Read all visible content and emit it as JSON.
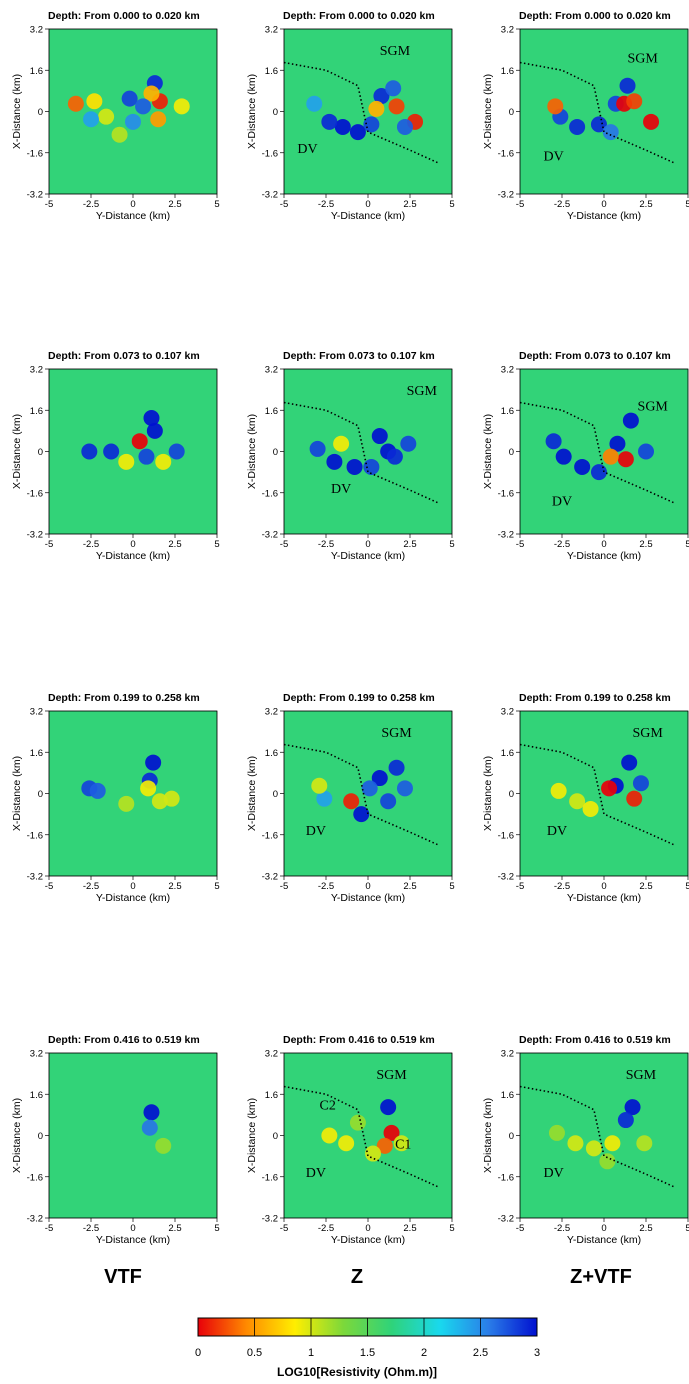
{
  "chart_data": {
    "type": "heatmap",
    "depth_titles": [
      "Depth: From 0.000 to 0.020 km",
      "Depth: From 0.073 to 0.107 km",
      "Depth: From 0.199 to 0.258 km",
      "Depth: From 0.416 to 0.519 km"
    ],
    "columns": [
      "VTF",
      "Z",
      "Z+VTF"
    ],
    "xlabel": "Y-Distance (km)",
    "ylabel": "X-Distance (km)",
    "x_ticks": [
      "-5",
      "-2.5",
      "0",
      "2.5",
      "5"
    ],
    "y_ticks": [
      "3.2",
      "1.6",
      "0",
      "-1.6",
      "-3.2"
    ],
    "xlim": [
      -5,
      5
    ],
    "ylim": [
      -3.2,
      3.2
    ],
    "region_labels": {
      "sgm": "SGM",
      "dv": "DV",
      "c1": "C1",
      "c2": "C2"
    },
    "colorbar": {
      "label": "LOG10[Resistivity (Ohm.m)]",
      "ticks": [
        "0",
        "0.5",
        "1",
        "1.5",
        "2",
        "2.5",
        "3"
      ],
      "range": [
        0,
        3
      ],
      "colors": [
        "#e8000a",
        "#ff8a00",
        "#ffee00",
        "#7cd83a",
        "#2fd37a",
        "#19d8ee",
        "#2a7de8",
        "#0010d0"
      ]
    },
    "background_value": 1.7,
    "panels": [
      {
        "row": 0,
        "col": 0,
        "blobs": [
          [
            1.3,
            1.1,
            2.9
          ],
          [
            1.6,
            0.4,
            0.1
          ],
          [
            1.1,
            0.7,
            0.6
          ],
          [
            -0.2,
            0.5,
            2.8
          ],
          [
            -1.6,
            -0.2,
            1.0
          ],
          [
            -3.4,
            0.3,
            0.3
          ],
          [
            -2.3,
            0.4,
            0.8
          ],
          [
            0.6,
            0.2,
            2.7
          ],
          [
            1.5,
            -0.3,
            0.5
          ],
          [
            2.9,
            0.2,
            0.9
          ],
          [
            -0.8,
            -0.9,
            1.1
          ],
          [
            -2.5,
            -0.3,
            2.4
          ],
          [
            0.0,
            -0.4,
            2.5
          ]
        ]
      },
      {
        "row": 0,
        "col": 1,
        "blobs": [
          [
            -1.5,
            -0.6,
            3.0
          ],
          [
            -0.6,
            -0.8,
            3.0
          ],
          [
            -2.3,
            -0.4,
            2.9
          ],
          [
            0.2,
            -0.5,
            2.8
          ],
          [
            0.8,
            0.6,
            2.9
          ],
          [
            1.5,
            0.9,
            2.7
          ],
          [
            2.8,
            -0.4,
            0.1
          ],
          [
            1.7,
            0.2,
            0.2
          ],
          [
            0.5,
            0.1,
            0.6
          ],
          [
            -3.2,
            0.3,
            2.4
          ],
          [
            2.2,
            -0.6,
            2.7
          ]
        ]
      },
      {
        "row": 0,
        "col": 2,
        "blobs": [
          [
            -1.6,
            -0.6,
            2.9
          ],
          [
            -2.6,
            -0.2,
            2.8
          ],
          [
            1.4,
            1.0,
            2.9
          ],
          [
            0.7,
            0.3,
            2.8
          ],
          [
            1.2,
            0.3,
            0.0
          ],
          [
            2.8,
            -0.4,
            0.0
          ],
          [
            1.8,
            0.4,
            0.2
          ],
          [
            -0.3,
            -0.5,
            2.9
          ],
          [
            -2.9,
            0.2,
            0.3
          ],
          [
            0.4,
            -0.8,
            2.6
          ]
        ]
      },
      {
        "row": 1,
        "col": 0,
        "blobs": [
          [
            1.3,
            0.8,
            3.0
          ],
          [
            1.1,
            1.3,
            3.0
          ],
          [
            -2.6,
            0.0,
            2.9
          ],
          [
            -1.3,
            0.0,
            2.9
          ],
          [
            0.4,
            0.4,
            0.0
          ],
          [
            0.8,
            -0.2,
            2.8
          ],
          [
            2.6,
            0.0,
            2.8
          ],
          [
            -0.4,
            -0.4,
            0.9
          ],
          [
            1.8,
            -0.4,
            0.9
          ]
        ]
      },
      {
        "row": 1,
        "col": 1,
        "blobs": [
          [
            -2.0,
            -0.4,
            3.0
          ],
          [
            -0.8,
            -0.6,
            3.0
          ],
          [
            0.7,
            0.6,
            3.0
          ],
          [
            1.2,
            0.0,
            3.0
          ],
          [
            -3.0,
            0.1,
            2.8
          ],
          [
            1.6,
            -0.2,
            2.9
          ],
          [
            -1.6,
            0.3,
            0.9
          ],
          [
            0.2,
            -0.6,
            2.8
          ],
          [
            2.4,
            0.3,
            2.8
          ]
        ]
      },
      {
        "row": 1,
        "col": 2,
        "blobs": [
          [
            -2.4,
            -0.2,
            3.0
          ],
          [
            -1.3,
            -0.6,
            3.0
          ],
          [
            1.6,
            1.2,
            3.0
          ],
          [
            0.8,
            0.3,
            3.0
          ],
          [
            1.3,
            -0.3,
            0.0
          ],
          [
            2.5,
            0.0,
            2.8
          ],
          [
            -0.3,
            -0.8,
            2.9
          ],
          [
            0.4,
            -0.2,
            0.4
          ],
          [
            -3.0,
            0.4,
            2.9
          ]
        ]
      },
      {
        "row": 2,
        "col": 0,
        "blobs": [
          [
            1.2,
            1.2,
            3.0
          ],
          [
            1.0,
            0.5,
            2.9
          ],
          [
            -2.6,
            0.2,
            2.8
          ],
          [
            -2.1,
            0.1,
            2.7
          ],
          [
            0.9,
            0.2,
            0.9
          ],
          [
            1.6,
            -0.3,
            1.0
          ],
          [
            -0.4,
            -0.4,
            1.1
          ],
          [
            2.3,
            -0.2,
            1.0
          ]
        ]
      },
      {
        "row": 2,
        "col": 1,
        "blobs": [
          [
            0.7,
            0.6,
            3.0
          ],
          [
            1.7,
            1.0,
            2.9
          ],
          [
            1.2,
            -0.3,
            2.8
          ],
          [
            -1.0,
            -0.3,
            0.1
          ],
          [
            -0.4,
            -0.8,
            3.0
          ],
          [
            -2.6,
            -0.2,
            2.4
          ],
          [
            0.1,
            0.2,
            2.7
          ],
          [
            -2.9,
            0.3,
            1.0
          ],
          [
            2.2,
            0.2,
            2.7
          ]
        ]
      },
      {
        "row": 2,
        "col": 2,
        "blobs": [
          [
            1.5,
            1.2,
            3.0
          ],
          [
            0.7,
            0.3,
            3.0
          ],
          [
            1.8,
            -0.2,
            0.1
          ],
          [
            0.3,
            0.2,
            0.0
          ],
          [
            -2.7,
            0.1,
            0.9
          ],
          [
            -1.6,
            -0.3,
            1.0
          ],
          [
            2.2,
            0.4,
            2.8
          ],
          [
            -0.8,
            -0.6,
            0.9
          ]
        ]
      },
      {
        "row": 3,
        "col": 0,
        "blobs": [
          [
            1.1,
            0.9,
            3.0
          ],
          [
            1.0,
            0.3,
            2.6
          ],
          [
            -1.8,
            -0.3,
            1.7
          ],
          [
            1.8,
            -0.4,
            1.2
          ]
        ]
      },
      {
        "row": 3,
        "col": 1,
        "blobs": [
          [
            1.2,
            1.1,
            3.0
          ],
          [
            1.4,
            0.1,
            0.0
          ],
          [
            1.0,
            -0.4,
            0.3
          ],
          [
            -2.3,
            0.0,
            0.9
          ],
          [
            -1.3,
            -0.3,
            0.9
          ],
          [
            0.3,
            -0.7,
            1.0
          ],
          [
            2.0,
            -0.3,
            1.0
          ],
          [
            -0.6,
            0.5,
            1.2
          ]
        ]
      },
      {
        "row": 3,
        "col": 2,
        "blobs": [
          [
            1.7,
            1.1,
            3.0
          ],
          [
            1.3,
            0.6,
            2.9
          ],
          [
            -1.7,
            -0.3,
            1.0
          ],
          [
            -0.6,
            -0.5,
            1.0
          ],
          [
            0.5,
            -0.3,
            0.9
          ],
          [
            2.4,
            -0.3,
            1.1
          ],
          [
            -2.8,
            0.1,
            1.2
          ],
          [
            0.2,
            -1.0,
            1.2
          ]
        ]
      }
    ],
    "boundary_line": [
      [
        -5,
        1.9
      ],
      [
        -2.5,
        1.6
      ],
      [
        -0.6,
        1.0
      ],
      [
        0.0,
        -0.8
      ],
      [
        2.5,
        -1.5
      ],
      [
        4.2,
        -2.0
      ]
    ]
  }
}
